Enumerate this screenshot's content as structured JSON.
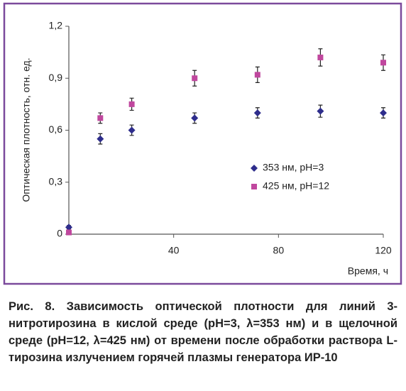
{
  "chart_data": {
    "type": "scatter",
    "ylabel": "Оптическая плотность, отн. ед.",
    "xlabel": "Время, ч",
    "x": [
      0,
      12,
      24,
      48,
      72,
      96,
      120
    ],
    "series": [
      {
        "name": "353 нм, pH=3",
        "color": "#2e2d8c",
        "marker": "diamond",
        "values": [
          0.04,
          0.55,
          0.6,
          0.67,
          0.7,
          0.71,
          0.7
        ],
        "errors": [
          0.01,
          0.03,
          0.03,
          0.03,
          0.03,
          0.035,
          0.03
        ]
      },
      {
        "name": "425 нм, pH=12",
        "color": "#c0479e",
        "marker": "square",
        "values": [
          0.01,
          0.67,
          0.75,
          0.9,
          0.92,
          1.02,
          0.99
        ],
        "errors": [
          0.01,
          0.03,
          0.035,
          0.045,
          0.045,
          0.05,
          0.045
        ]
      }
    ],
    "xlim": [
      0,
      120
    ],
    "xticks": [
      40,
      80,
      120
    ],
    "ylim": [
      0,
      1.2
    ],
    "yticks": [
      0,
      {
        "value": 0.3,
        "label": "0,3"
      },
      {
        "value": 0.6,
        "label": "0,6"
      },
      {
        "value": 0.9,
        "label": "0,9"
      },
      {
        "value": 1.2,
        "label": "1,2"
      }
    ],
    "grid": false
  },
  "caption": "Рис. 8. Зависимость оптической плотности для линий 3-нитротирозина в кислой среде (pH=3, λ=353 нм) и в щелочной среде (pH=12, λ=425 нм) от времени после обработки раствора L-тирозина излучением горячей плазмы генератора ИР-10"
}
